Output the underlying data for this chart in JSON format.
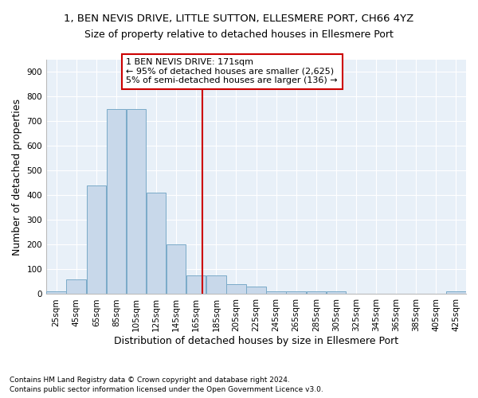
{
  "title": "1, BEN NEVIS DRIVE, LITTLE SUTTON, ELLESMERE PORT, CH66 4YZ",
  "subtitle": "Size of property relative to detached houses in Ellesmere Port",
  "xlabel": "Distribution of detached houses by size in Ellesmere Port",
  "ylabel": "Number of detached properties",
  "footnote1": "Contains HM Land Registry data © Crown copyright and database right 2024.",
  "footnote2": "Contains public sector information licensed under the Open Government Licence v3.0.",
  "annotation_line1": "1 BEN NEVIS DRIVE: 171sqm",
  "annotation_line2": "← 95% of detached houses are smaller (2,625)",
  "annotation_line3": "5% of semi-detached houses are larger (136) →",
  "property_size": 171,
  "bar_color": "#c8d8ea",
  "bar_edge_color": "#7aaac8",
  "vline_color": "#cc0000",
  "bg_color": "#e8f0f8",
  "grid_color": "#ffffff",
  "categories": [
    "25sqm",
    "45sqm",
    "65sqm",
    "85sqm",
    "105sqm",
    "125sqm",
    "145sqm",
    "165sqm",
    "185sqm",
    "205sqm",
    "225sqm",
    "245sqm",
    "265sqm",
    "285sqm",
    "305sqm",
    "325sqm",
    "345sqm",
    "365sqm",
    "385sqm",
    "405sqm",
    "425sqm"
  ],
  "values": [
    10,
    58,
    440,
    750,
    750,
    410,
    200,
    75,
    75,
    40,
    30,
    10,
    10,
    10,
    10,
    0,
    0,
    0,
    0,
    0,
    10
  ],
  "bin_edges": [
    15,
    35,
    55,
    75,
    95,
    115,
    135,
    155,
    175,
    195,
    215,
    235,
    255,
    275,
    295,
    315,
    335,
    355,
    375,
    395,
    415,
    435
  ],
  "ylim": [
    0,
    950
  ],
  "yticks": [
    0,
    100,
    200,
    300,
    400,
    500,
    600,
    700,
    800,
    900
  ],
  "title_fontsize": 9.5,
  "subtitle_fontsize": 9,
  "tick_fontsize": 7.5,
  "label_fontsize": 9,
  "annotation_fontsize": 8,
  "footnote_fontsize": 6.5
}
